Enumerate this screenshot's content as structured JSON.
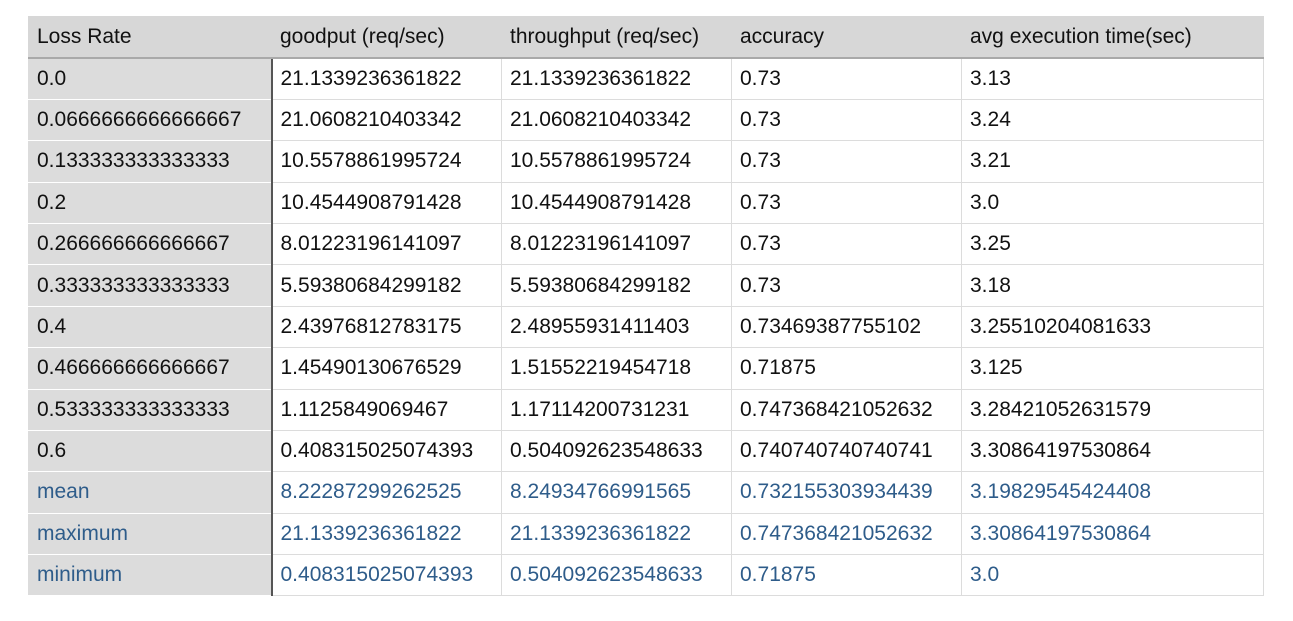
{
  "table": {
    "headers": [
      "Loss Rate",
      "goodput (req/sec)",
      "throughput (req/sec)",
      "accuracy",
      "avg execution time(sec)"
    ],
    "rows": [
      [
        "0.0",
        "21.1339236361822",
        "21.1339236361822",
        "0.73",
        "3.13"
      ],
      [
        "0.0666666666666667",
        "21.0608210403342",
        "21.0608210403342",
        "0.73",
        "3.24"
      ],
      [
        "0.133333333333333",
        "10.5578861995724",
        "10.5578861995724",
        "0.73",
        "3.21"
      ],
      [
        "0.2",
        "10.4544908791428",
        "10.4544908791428",
        "0.73",
        "3.0"
      ],
      [
        "0.266666666666667",
        "8.01223196141097",
        "8.01223196141097",
        "0.73",
        "3.25"
      ],
      [
        "0.333333333333333",
        "5.59380684299182",
        "5.59380684299182",
        "0.73",
        "3.18"
      ],
      [
        "0.4",
        "2.43976812783175",
        "2.48955931411403",
        "0.73469387755102",
        "3.25510204081633"
      ],
      [
        "0.466666666666667",
        "1.45490130676529",
        "1.51552219454718",
        "0.71875",
        "3.125"
      ],
      [
        "0.533333333333333",
        "1.1125849069467",
        "1.17114200731231",
        "0.747368421052632",
        "3.28421052631579"
      ],
      [
        "0.6",
        "0.408315025074393",
        "0.504092623548633",
        "0.740740740740741",
        "3.30864197530864"
      ]
    ],
    "stats": [
      [
        "mean",
        "8.22287299262525",
        "8.24934766991565",
        "0.732155303934439",
        "3.19829545424408"
      ],
      [
        "maximum",
        "21.1339236361822",
        "21.1339236361822",
        "0.747368421052632",
        "3.30864197530864"
      ],
      [
        "minimum",
        "0.408315025074393",
        "0.504092623548633",
        "0.71875",
        "3.0"
      ]
    ]
  },
  "colors": {
    "header_bg": "#d7d7d7",
    "row_header_bg": "#dcdcdc",
    "stat_text": "#2e5c8a",
    "grid_line": "#dcdcdc"
  }
}
